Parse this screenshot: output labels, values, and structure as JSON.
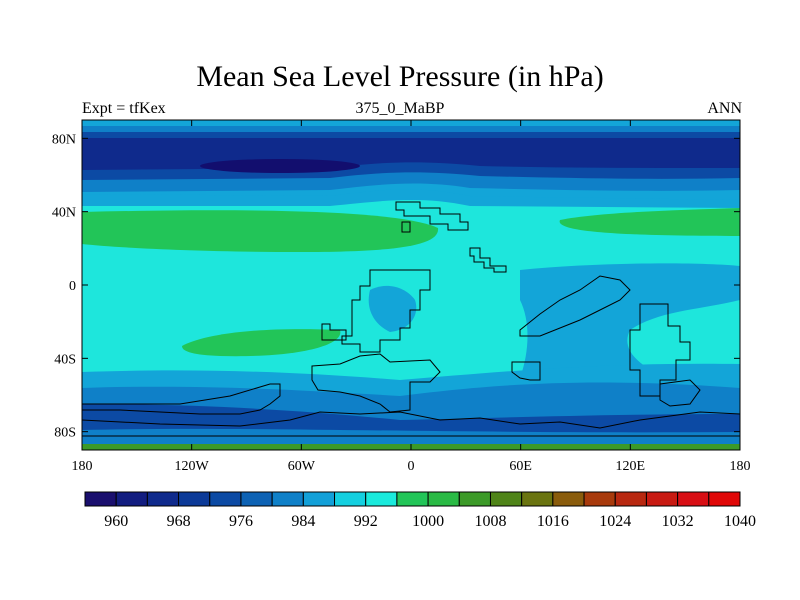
{
  "title": "Mean Sea Level Pressure (in hPa)",
  "left_label": "Expt = tfKex",
  "center_label": "375_0_MaBP",
  "right_label": "ANN",
  "lat_ticks": [
    {
      "label": "80N",
      "lat": 80
    },
    {
      "label": "40N",
      "lat": 40
    },
    {
      "label": "0",
      "lat": 0
    },
    {
      "label": "40S",
      "lat": -40
    },
    {
      "label": "80S",
      "lat": -80
    }
  ],
  "lon_ticks": [
    {
      "label": "180",
      "lon": -180
    },
    {
      "label": "120W",
      "lon": -120
    },
    {
      "label": "60W",
      "lon": -60
    },
    {
      "label": "0",
      "lon": 0
    },
    {
      "label": "60E",
      "lon": 60
    },
    {
      "label": "120E",
      "lon": 120
    },
    {
      "label": "180",
      "lon": 180
    }
  ],
  "colorbar": {
    "colors": [
      "#1a0f6e",
      "#121d80",
      "#0f2a8c",
      "#0c3a98",
      "#0c4aa4",
      "#0d62b4",
      "#0f80c8",
      "#12a0d8",
      "#14d0e0",
      "#1aeadc",
      "#22c558",
      "#2aba45",
      "#3c9a28",
      "#4f8418",
      "#6a7410",
      "#8a5c0c",
      "#a83a0c",
      "#b82810",
      "#c81a12",
      "#d80e14",
      "#e00808"
    ],
    "labels": [
      {
        "text": "960",
        "index": 1
      },
      {
        "text": "968",
        "index": 3
      },
      {
        "text": "976",
        "index": 5
      },
      {
        "text": "984",
        "index": 7
      },
      {
        "text": "992",
        "index": 9
      },
      {
        "text": "1000",
        "index": 11
      },
      {
        "text": "1008",
        "index": 13
      },
      {
        "text": "1016",
        "index": 15
      },
      {
        "text": "1024",
        "index": 17
      },
      {
        "text": "1032",
        "index": 19
      },
      {
        "text": "1040",
        "index": 21
      }
    ]
  },
  "map_fill": {
    "levels": [
      {
        "color": "#13a5d8"
      },
      {
        "color": "#1ee6dc"
      },
      {
        "color": "#22c558"
      },
      {
        "color": "#0f80c8"
      },
      {
        "color": "#0c4aa4"
      },
      {
        "color": "#0f2a8c"
      },
      {
        "color": "#120e6e"
      }
    ]
  }
}
